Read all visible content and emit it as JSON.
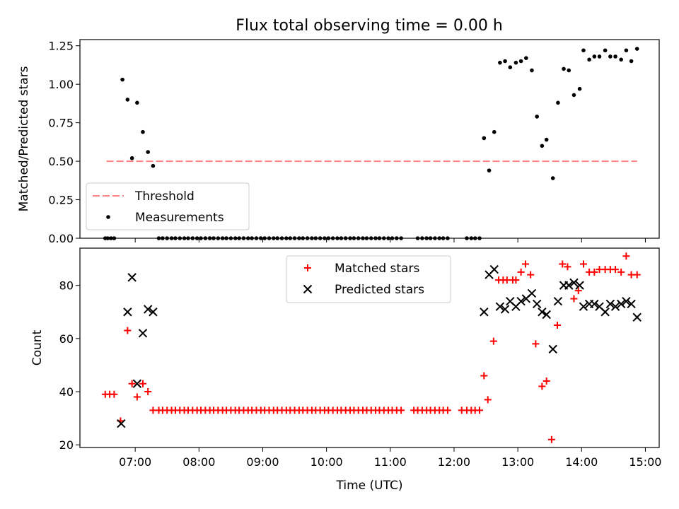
{
  "title": "Flux total observing time = 0.00 h",
  "chart_data": [
    {
      "type": "scatter",
      "ylabel": "Matched/Predicted stars",
      "xlim": [
        6.133,
        15.217
      ],
      "ylim": [
        0,
        1.29
      ],
      "y_ticks": [
        0,
        0.25,
        0.5,
        0.75,
        1.0,
        1.25
      ],
      "y_tick_labels": [
        "0.00",
        "0.25",
        "0.50",
        "0.75",
        "1.00",
        "1.25"
      ],
      "legend_position": "lower-left",
      "threshold": {
        "name": "Threshold",
        "value": 0.5,
        "x_start": 6.55,
        "x_end": 14.87,
        "color": "#ff8080",
        "style": "dashed"
      },
      "series": [
        {
          "name": "Measurements",
          "color": "#000000",
          "marker": "dot",
          "points": [
            [
              6.53,
              0
            ],
            [
              6.57,
              0
            ],
            [
              6.62,
              0
            ],
            [
              6.67,
              0
            ],
            [
              6.8,
              1.03
            ],
            [
              6.88,
              0.9
            ],
            [
              6.95,
              0.52
            ],
            [
              7.03,
              0.88
            ],
            [
              7.12,
              0.69
            ],
            [
              7.2,
              0.56
            ],
            [
              7.28,
              0.47
            ],
            [
              7.37,
              0
            ],
            [
              7.43,
              0
            ],
            [
              7.5,
              0
            ],
            [
              7.57,
              0
            ],
            [
              7.63,
              0
            ],
            [
              7.7,
              0
            ],
            [
              7.77,
              0
            ],
            [
              7.83,
              0
            ],
            [
              7.9,
              0
            ],
            [
              7.97,
              0
            ],
            [
              8.03,
              0
            ],
            [
              8.1,
              0
            ],
            [
              8.17,
              0
            ],
            [
              8.23,
              0
            ],
            [
              8.3,
              0
            ],
            [
              8.37,
              0
            ],
            [
              8.43,
              0
            ],
            [
              8.5,
              0
            ],
            [
              8.57,
              0
            ],
            [
              8.63,
              0
            ],
            [
              8.7,
              0
            ],
            [
              8.77,
              0
            ],
            [
              8.83,
              0
            ],
            [
              8.9,
              0
            ],
            [
              8.97,
              0
            ],
            [
              9.03,
              0
            ],
            [
              9.1,
              0
            ],
            [
              9.17,
              0
            ],
            [
              9.23,
              0
            ],
            [
              9.3,
              0
            ],
            [
              9.37,
              0
            ],
            [
              9.43,
              0
            ],
            [
              9.5,
              0
            ],
            [
              9.57,
              0
            ],
            [
              9.63,
              0
            ],
            [
              9.7,
              0
            ],
            [
              9.77,
              0
            ],
            [
              9.83,
              0
            ],
            [
              9.9,
              0
            ],
            [
              9.97,
              0
            ],
            [
              10.03,
              0
            ],
            [
              10.1,
              0
            ],
            [
              10.17,
              0
            ],
            [
              10.23,
              0
            ],
            [
              10.3,
              0
            ],
            [
              10.37,
              0
            ],
            [
              10.43,
              0
            ],
            [
              10.5,
              0
            ],
            [
              10.57,
              0
            ],
            [
              10.63,
              0
            ],
            [
              10.7,
              0
            ],
            [
              10.77,
              0
            ],
            [
              10.83,
              0
            ],
            [
              10.9,
              0
            ],
            [
              10.97,
              0
            ],
            [
              11.03,
              0
            ],
            [
              11.1,
              0
            ],
            [
              11.17,
              0
            ],
            [
              11.43,
              0
            ],
            [
              11.5,
              0
            ],
            [
              11.57,
              0
            ],
            [
              11.63,
              0
            ],
            [
              11.7,
              0
            ],
            [
              11.77,
              0
            ],
            [
              11.83,
              0
            ],
            [
              11.9,
              0
            ],
            [
              12.2,
              0
            ],
            [
              12.27,
              0
            ],
            [
              12.33,
              0
            ],
            [
              12.4,
              0
            ],
            [
              12.47,
              0.65
            ],
            [
              12.55,
              0.44
            ],
            [
              12.63,
              0.69
            ],
            [
              12.72,
              1.14
            ],
            [
              12.8,
              1.15
            ],
            [
              12.88,
              1.11
            ],
            [
              12.97,
              1.14
            ],
            [
              13.05,
              1.15
            ],
            [
              13.13,
              1.17
            ],
            [
              13.22,
              1.09
            ],
            [
              13.3,
              0.79
            ],
            [
              13.38,
              0.6
            ],
            [
              13.45,
              0.64
            ],
            [
              13.55,
              0.39
            ],
            [
              13.63,
              0.88
            ],
            [
              13.72,
              1.1
            ],
            [
              13.8,
              1.09
            ],
            [
              13.88,
              0.93
            ],
            [
              13.97,
              0.97
            ],
            [
              14.03,
              1.22
            ],
            [
              14.12,
              1.16
            ],
            [
              14.2,
              1.18
            ],
            [
              14.28,
              1.18
            ],
            [
              14.37,
              1.22
            ],
            [
              14.45,
              1.18
            ],
            [
              14.53,
              1.18
            ],
            [
              14.62,
              1.16
            ],
            [
              14.7,
              1.22
            ],
            [
              14.78,
              1.15
            ],
            [
              14.87,
              1.23
            ]
          ]
        }
      ]
    },
    {
      "type": "scatter",
      "ylabel": "Count",
      "xlabel": "Time (UTC)",
      "xlim": [
        6.133,
        15.217
      ],
      "ylim": [
        19,
        94
      ],
      "x_ticks": [
        7,
        8,
        9,
        10,
        11,
        12,
        13,
        14,
        15
      ],
      "x_tick_labels": [
        "07:00",
        "08:00",
        "09:00",
        "10:00",
        "11:00",
        "12:00",
        "13:00",
        "14:00",
        "15:00"
      ],
      "y_ticks": [
        20,
        40,
        60,
        80
      ],
      "y_tick_labels": [
        "20",
        "40",
        "60",
        "80"
      ],
      "legend_position": "upper-center",
      "series": [
        {
          "name": "Matched stars",
          "color": "#ff0000",
          "marker": "plus",
          "points": [
            [
              6.53,
              39
            ],
            [
              6.6,
              39
            ],
            [
              6.67,
              39
            ],
            [
              6.77,
              29
            ],
            [
              6.88,
              63
            ],
            [
              6.95,
              43
            ],
            [
              7.03,
              38
            ],
            [
              7.12,
              43
            ],
            [
              7.2,
              40
            ],
            [
              7.28,
              33
            ],
            [
              7.37,
              33
            ],
            [
              7.43,
              33
            ],
            [
              7.5,
              33
            ],
            [
              7.57,
              33
            ],
            [
              7.63,
              33
            ],
            [
              7.7,
              33
            ],
            [
              7.77,
              33
            ],
            [
              7.83,
              33
            ],
            [
              7.9,
              33
            ],
            [
              7.97,
              33
            ],
            [
              8.03,
              33
            ],
            [
              8.1,
              33
            ],
            [
              8.17,
              33
            ],
            [
              8.23,
              33
            ],
            [
              8.3,
              33
            ],
            [
              8.37,
              33
            ],
            [
              8.43,
              33
            ],
            [
              8.5,
              33
            ],
            [
              8.57,
              33
            ],
            [
              8.63,
              33
            ],
            [
              8.7,
              33
            ],
            [
              8.77,
              33
            ],
            [
              8.83,
              33
            ],
            [
              8.9,
              33
            ],
            [
              8.97,
              33
            ],
            [
              9.03,
              33
            ],
            [
              9.1,
              33
            ],
            [
              9.17,
              33
            ],
            [
              9.23,
              33
            ],
            [
              9.3,
              33
            ],
            [
              9.37,
              33
            ],
            [
              9.43,
              33
            ],
            [
              9.5,
              33
            ],
            [
              9.57,
              33
            ],
            [
              9.63,
              33
            ],
            [
              9.7,
              33
            ],
            [
              9.77,
              33
            ],
            [
              9.83,
              33
            ],
            [
              9.9,
              33
            ],
            [
              9.97,
              33
            ],
            [
              10.03,
              33
            ],
            [
              10.1,
              33
            ],
            [
              10.17,
              33
            ],
            [
              10.23,
              33
            ],
            [
              10.3,
              33
            ],
            [
              10.37,
              33
            ],
            [
              10.43,
              33
            ],
            [
              10.5,
              33
            ],
            [
              10.57,
              33
            ],
            [
              10.63,
              33
            ],
            [
              10.7,
              33
            ],
            [
              10.77,
              33
            ],
            [
              10.83,
              33
            ],
            [
              10.9,
              33
            ],
            [
              10.97,
              33
            ],
            [
              11.03,
              33
            ],
            [
              11.1,
              33
            ],
            [
              11.17,
              33
            ],
            [
              11.37,
              33
            ],
            [
              11.43,
              33
            ],
            [
              11.5,
              33
            ],
            [
              11.57,
              33
            ],
            [
              11.63,
              33
            ],
            [
              11.7,
              33
            ],
            [
              11.77,
              33
            ],
            [
              11.83,
              33
            ],
            [
              11.9,
              33
            ],
            [
              12.12,
              33
            ],
            [
              12.2,
              33
            ],
            [
              12.27,
              33
            ],
            [
              12.33,
              33
            ],
            [
              12.4,
              33
            ],
            [
              12.47,
              46
            ],
            [
              12.53,
              37
            ],
            [
              12.62,
              59
            ],
            [
              12.7,
              82
            ],
            [
              12.77,
              82
            ],
            [
              12.83,
              82
            ],
            [
              12.92,
              82
            ],
            [
              12.97,
              82
            ],
            [
              13.05,
              85
            ],
            [
              13.12,
              88
            ],
            [
              13.2,
              84
            ],
            [
              13.28,
              58
            ],
            [
              13.38,
              42
            ],
            [
              13.45,
              44
            ],
            [
              13.53,
              22
            ],
            [
              13.62,
              65
            ],
            [
              13.7,
              88
            ],
            [
              13.78,
              87
            ],
            [
              13.88,
              75
            ],
            [
              13.95,
              78
            ],
            [
              14.03,
              88
            ],
            [
              14.12,
              85
            ],
            [
              14.2,
              85
            ],
            [
              14.28,
              86
            ],
            [
              14.37,
              86
            ],
            [
              14.45,
              86
            ],
            [
              14.53,
              86
            ],
            [
              14.62,
              85
            ],
            [
              14.7,
              91
            ],
            [
              14.78,
              84
            ],
            [
              14.87,
              84
            ]
          ]
        },
        {
          "name": "Predicted stars",
          "color": "#000000",
          "marker": "x",
          "points": [
            [
              6.78,
              28
            ],
            [
              6.88,
              70
            ],
            [
              6.95,
              83
            ],
            [
              7.03,
              43
            ],
            [
              7.12,
              62
            ],
            [
              7.2,
              71
            ],
            [
              7.28,
              70
            ],
            [
              12.47,
              70
            ],
            [
              12.55,
              84
            ],
            [
              12.63,
              86
            ],
            [
              12.72,
              72
            ],
            [
              12.8,
              71
            ],
            [
              12.88,
              74
            ],
            [
              12.97,
              72
            ],
            [
              13.05,
              74
            ],
            [
              13.13,
              75
            ],
            [
              13.22,
              77
            ],
            [
              13.3,
              73
            ],
            [
              13.38,
              70
            ],
            [
              13.45,
              69
            ],
            [
              13.55,
              56
            ],
            [
              13.63,
              74
            ],
            [
              13.72,
              80
            ],
            [
              13.8,
              80
            ],
            [
              13.88,
              81
            ],
            [
              13.97,
              80
            ],
            [
              14.03,
              72
            ],
            [
              14.12,
              73
            ],
            [
              14.2,
              73
            ],
            [
              14.28,
              72
            ],
            [
              14.37,
              70
            ],
            [
              14.45,
              73
            ],
            [
              14.53,
              72
            ],
            [
              14.62,
              73
            ],
            [
              14.7,
              74
            ],
            [
              14.78,
              73
            ],
            [
              14.87,
              68
            ]
          ]
        }
      ]
    }
  ]
}
